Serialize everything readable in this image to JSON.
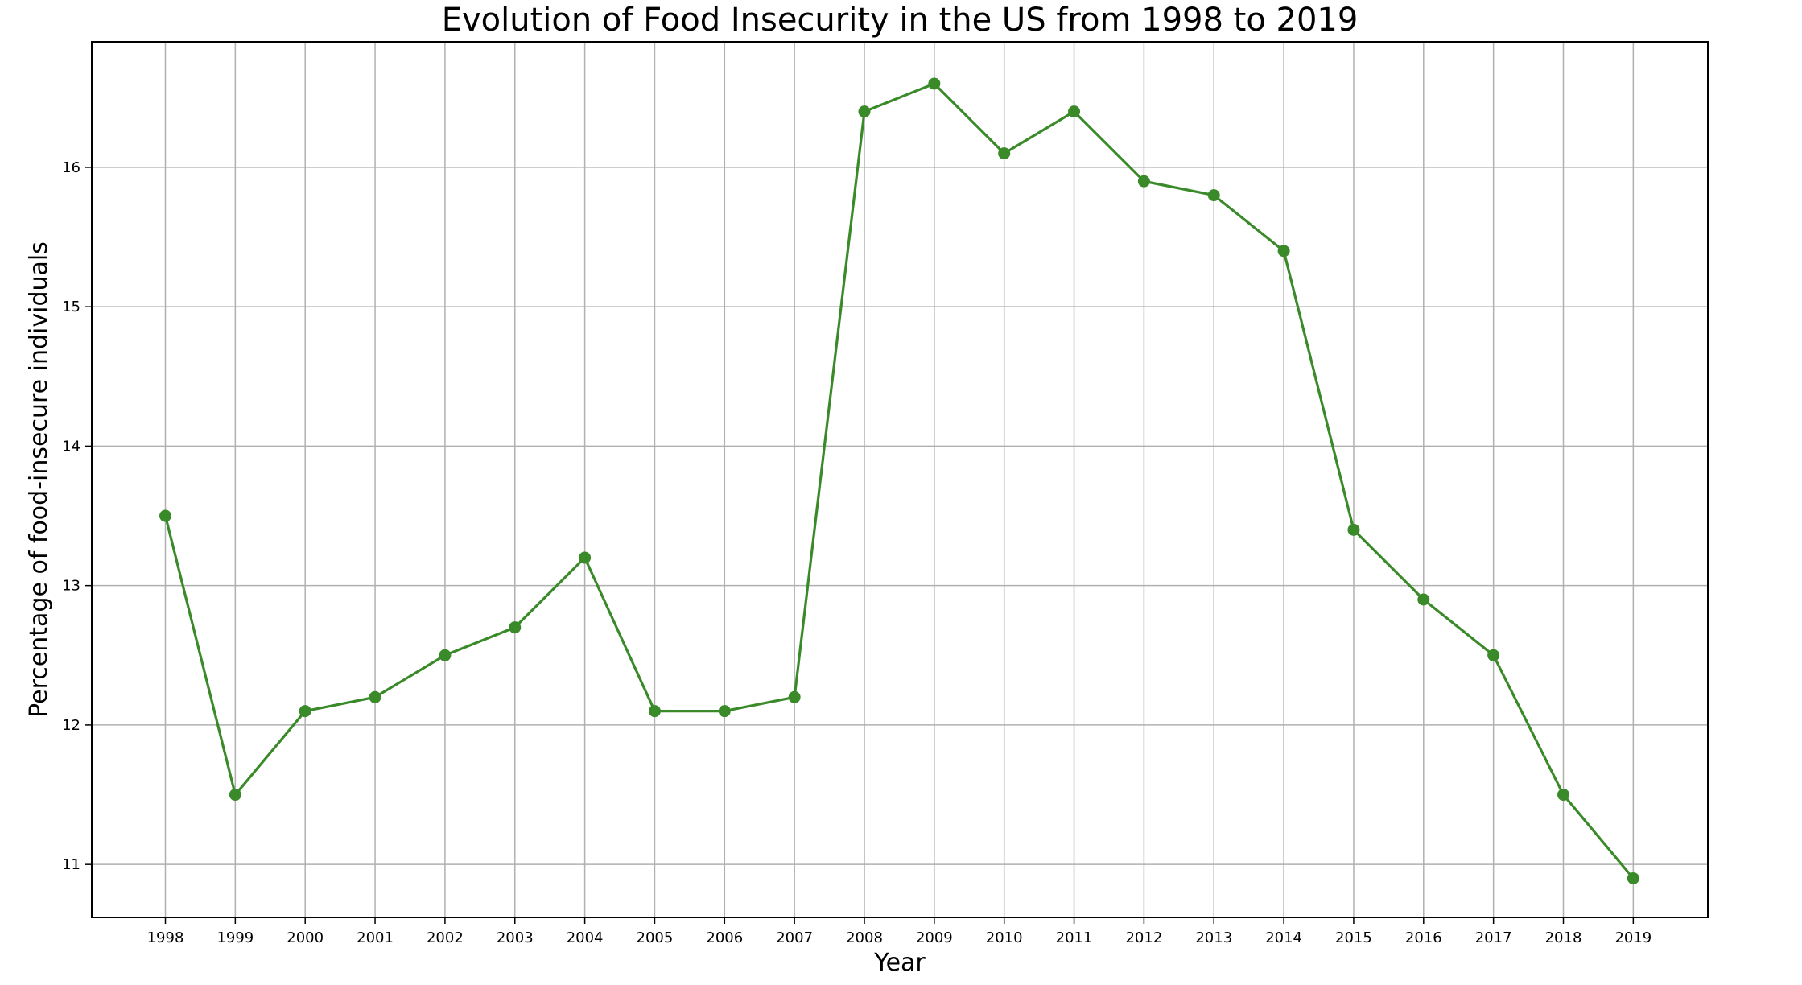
{
  "chart_data": {
    "type": "line",
    "title": "Evolution of Food Insecurity in the US from 1998 to 2019",
    "xlabel": "Year",
    "ylabel": "Percentage of food-insecure individuals",
    "categories": [
      "1998",
      "1999",
      "2000",
      "2001",
      "2002",
      "2003",
      "2004",
      "2005",
      "2006",
      "2007",
      "2008",
      "2009",
      "2010",
      "2011",
      "2012",
      "2013",
      "2014",
      "2015",
      "2016",
      "2017",
      "2018",
      "2019"
    ],
    "y_ticks": [
      "11",
      "12",
      "13",
      "14",
      "15",
      "16"
    ],
    "ylim": [
      10.62,
      16.9
    ],
    "grid": true,
    "series": [
      {
        "values": [
          13.5,
          11.5,
          12.1,
          12.2,
          12.5,
          12.7,
          13.2,
          12.1,
          12.1,
          12.2,
          16.4,
          16.6,
          16.1,
          16.4,
          15.9,
          15.8,
          15.4,
          13.4,
          12.9,
          12.5,
          11.5,
          10.9
        ],
        "color": "#3a8a2a"
      }
    ]
  }
}
